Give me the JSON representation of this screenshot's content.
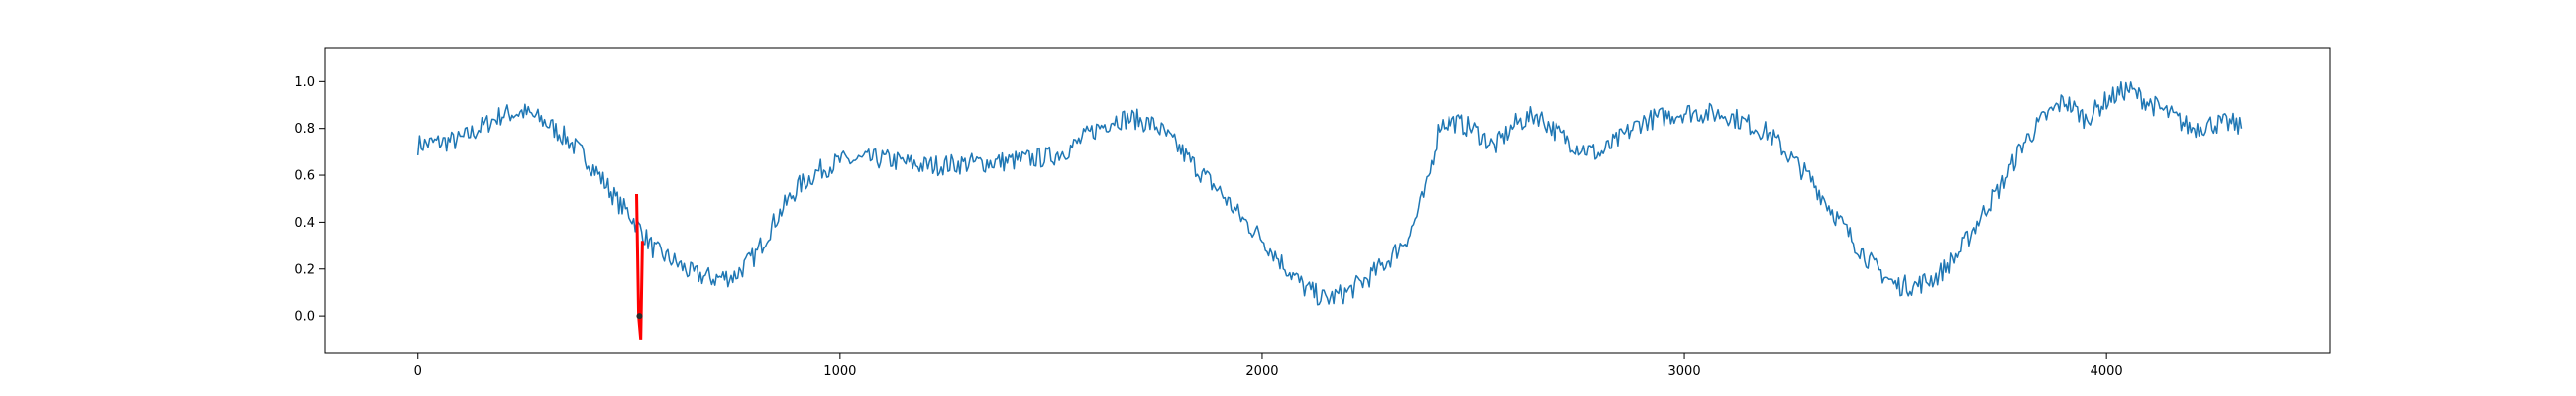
{
  "chart_data": {
    "type": "line",
    "title": "",
    "xlabel": "",
    "ylabel": "",
    "xlim": [
      -220,
      4530
    ],
    "ylim": [
      -0.16,
      1.145
    ],
    "grid": false,
    "legend": null,
    "x_ticks": [
      0,
      1000,
      2000,
      3000,
      4000
    ],
    "x_tick_labels": [
      "0",
      "1000",
      "2000",
      "3000",
      "4000"
    ],
    "y_ticks": [
      0.0,
      0.2,
      0.4,
      0.6,
      0.8,
      1.0
    ],
    "y_tick_labels": [
      "0.0",
      "0.2",
      "0.4",
      "0.6",
      "0.8",
      "1.0"
    ],
    "colors": {
      "series": "#1f77b4",
      "highlight": "#ff0000",
      "marker": "#2b2b2b"
    },
    "series": [
      {
        "x": [
          0,
          100,
          200,
          250,
          300,
          350,
          400,
          450,
          480,
          500,
          530,
          560,
          600,
          650,
          700,
          750,
          800,
          850,
          900,
          950,
          1000,
          1100,
          1200,
          1300,
          1400,
          1500,
          1550,
          1600,
          1650,
          1700,
          1750,
          1800,
          1850,
          1900,
          1950,
          2000,
          2050,
          2100,
          2150,
          2200,
          2250,
          2300,
          2350,
          2390,
          2420,
          2450,
          2500,
          2550,
          2600,
          2650,
          2700,
          2750,
          2800,
          2850,
          2900,
          3000,
          3100,
          3200,
          3250,
          3300,
          3350,
          3400,
          3450,
          3500,
          3550,
          3600,
          3650,
          3700,
          3750,
          3800,
          3850,
          3900,
          3950,
          4000,
          4050,
          4100,
          4150,
          4200,
          4250,
          4300,
          4320
        ],
        "y": [
          0.73,
          0.75,
          0.86,
          0.87,
          0.83,
          0.76,
          0.67,
          0.55,
          0.47,
          0.44,
          0.36,
          0.28,
          0.24,
          0.18,
          0.16,
          0.17,
          0.26,
          0.42,
          0.55,
          0.62,
          0.66,
          0.67,
          0.64,
          0.65,
          0.66,
          0.68,
          0.72,
          0.79,
          0.84,
          0.84,
          0.81,
          0.72,
          0.62,
          0.53,
          0.42,
          0.33,
          0.22,
          0.12,
          0.07,
          0.1,
          0.16,
          0.24,
          0.35,
          0.55,
          0.82,
          0.83,
          0.8,
          0.72,
          0.82,
          0.86,
          0.78,
          0.72,
          0.69,
          0.76,
          0.83,
          0.87,
          0.86,
          0.78,
          0.68,
          0.58,
          0.45,
          0.32,
          0.21,
          0.13,
          0.13,
          0.17,
          0.27,
          0.42,
          0.55,
          0.73,
          0.84,
          0.92,
          0.84,
          0.92,
          0.97,
          0.91,
          0.86,
          0.8,
          0.82,
          0.82,
          0.8
        ]
      }
    ],
    "highlight_segment": {
      "x": [
        518,
        523,
        528,
        532
      ],
      "y": [
        0.52,
        0.0,
        -0.1,
        0.32
      ]
    },
    "marker": {
      "x": 525,
      "y": 0.0
    }
  }
}
